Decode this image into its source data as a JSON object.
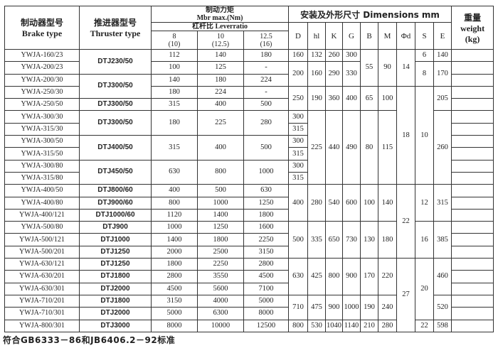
{
  "header": {
    "brake_cn": "制动器型号",
    "brake_en": "Brake type",
    "thruster_cn": "推进器型号",
    "thruster_en": "Thruster type",
    "torque_cn": "制动力矩",
    "torque_en": "Mbr max.(Nm)",
    "lever": "杠杆比 Leverratio",
    "lever_cols": [
      {
        "top": "8",
        "bottom": "(10)"
      },
      {
        "top": "10",
        "bottom": "(12.5)"
      },
      {
        "top": "12.5",
        "bottom": "(16)"
      }
    ],
    "dimensions": "安装及外形尺寸 Dimensions mm",
    "dim_cols": [
      "D",
      "hl",
      "K",
      "G",
      "B",
      "M",
      "Φd",
      "S",
      "E"
    ],
    "weight_cn": "重量",
    "weight_en": "weight",
    "weight_unit": "(kg)"
  },
  "brake_types": [
    "YWJA-160/23",
    "YWJA-200/23",
    "YWJA-200/30",
    "YWJA-250/30",
    "YWJA-250/50",
    "YWJA-300/30",
    "YWJA-315/30",
    "YWJA-300/50",
    "YWJA-315/50",
    "YWJA-300/80",
    "YWJA-315/80",
    "YWJA-400/50",
    "YWJA-400/80",
    "YWJA-400/121",
    "YWJA-500/80",
    "YWJA-500/121",
    "YWJA-500/201",
    "YWJA-630/121",
    "YWJA-630/201",
    "YWJA-630/301",
    "YWJA-710/201",
    "YWJA-710/301",
    "YWJA-800/301"
  ],
  "columns": {
    "thruster": [
      {
        "v": "DTJ230/50",
        "span": 2
      },
      {
        "v": "DTJ300/50",
        "span": 2
      },
      {
        "v": "DTJ300/50",
        "span": 1
      },
      {
        "v": "DTJ300/50",
        "span": 2
      },
      {
        "v": "DTJ400/50",
        "span": 2
      },
      {
        "v": "DTJ450/50",
        "span": 2
      },
      {
        "v": "DTJ800/60",
        "span": 1
      },
      {
        "v": "DTJ900/60",
        "span": 1
      },
      {
        "v": "DTJ1000/60",
        "span": 1
      },
      {
        "v": "DTJ900",
        "span": 1
      },
      {
        "v": "DTJ1000",
        "span": 1
      },
      {
        "v": "DTJ1250",
        "span": 1
      },
      {
        "v": "DTJ1250",
        "span": 1
      },
      {
        "v": "DTJ1800",
        "span": 1
      },
      {
        "v": "DTJ2000",
        "span": 1
      },
      {
        "v": "DTJ1800",
        "span": 1
      },
      {
        "v": "DTJ2000",
        "span": 1
      },
      {
        "v": "DTJ3000",
        "span": 1
      }
    ],
    "t8": [
      {
        "v": "112",
        "span": 1
      },
      {
        "v": "100",
        "span": 1
      },
      {
        "v": "140",
        "span": 1
      },
      {
        "v": "180",
        "span": 1
      },
      {
        "v": "315",
        "span": 1
      },
      {
        "v": "180",
        "span": 2
      },
      {
        "v": "315",
        "span": 2
      },
      {
        "v": "630",
        "span": 2
      },
      {
        "v": "400",
        "span": 1
      },
      {
        "v": "800",
        "span": 1
      },
      {
        "v": "1120",
        "span": 1
      },
      {
        "v": "1000",
        "span": 1
      },
      {
        "v": "1400",
        "span": 1
      },
      {
        "v": "2000",
        "span": 1
      },
      {
        "v": "1800",
        "span": 1
      },
      {
        "v": "2800",
        "span": 1
      },
      {
        "v": "4500",
        "span": 1
      },
      {
        "v": "3150",
        "span": 1
      },
      {
        "v": "5000",
        "span": 1
      },
      {
        "v": "8000",
        "span": 1
      }
    ],
    "t10": [
      {
        "v": "140",
        "span": 1
      },
      {
        "v": "125",
        "span": 1
      },
      {
        "v": "180",
        "span": 1
      },
      {
        "v": "224",
        "span": 1
      },
      {
        "v": "400",
        "span": 1
      },
      {
        "v": "225",
        "span": 2
      },
      {
        "v": "400",
        "span": 2
      },
      {
        "v": "800",
        "span": 2
      },
      {
        "v": "500",
        "span": 1
      },
      {
        "v": "1000",
        "span": 1
      },
      {
        "v": "1400",
        "span": 1
      },
      {
        "v": "1250",
        "span": 1
      },
      {
        "v": "1800",
        "span": 1
      },
      {
        "v": "2500",
        "span": 1
      },
      {
        "v": "2250",
        "span": 1
      },
      {
        "v": "3550",
        "span": 1
      },
      {
        "v": "5600",
        "span": 1
      },
      {
        "v": "4000",
        "span": 1
      },
      {
        "v": "6300",
        "span": 1
      },
      {
        "v": "10000",
        "span": 1
      }
    ],
    "t125": [
      {
        "v": "180",
        "span": 1
      },
      {
        "v": "-",
        "span": 1
      },
      {
        "v": "224",
        "span": 1
      },
      {
        "v": "-",
        "span": 1
      },
      {
        "v": "500",
        "span": 1
      },
      {
        "v": "280",
        "span": 2
      },
      {
        "v": "500",
        "span": 2
      },
      {
        "v": "1000",
        "span": 2
      },
      {
        "v": "630",
        "span": 1
      },
      {
        "v": "1250",
        "span": 1
      },
      {
        "v": "1800",
        "span": 1
      },
      {
        "v": "1600",
        "span": 1
      },
      {
        "v": "2250",
        "span": 1
      },
      {
        "v": "3150",
        "span": 1
      },
      {
        "v": "2800",
        "span": 1
      },
      {
        "v": "4500",
        "span": 1
      },
      {
        "v": "7100",
        "span": 1
      },
      {
        "v": "5000",
        "span": 1
      },
      {
        "v": "8000",
        "span": 1
      },
      {
        "v": "12500",
        "span": 1
      }
    ],
    "D": [
      {
        "v": "160",
        "span": 1
      },
      {
        "v": "200",
        "span": 2
      },
      {
        "v": "250",
        "span": 2
      },
      {
        "v": "300",
        "span": 1
      },
      {
        "v": "315",
        "span": 1
      },
      {
        "v": "300",
        "span": 1
      },
      {
        "v": "315",
        "span": 1
      },
      {
        "v": "300",
        "span": 1
      },
      {
        "v": "315",
        "span": 1
      },
      {
        "v": "400",
        "span": 3
      },
      {
        "v": "500",
        "span": 3
      },
      {
        "v": "630",
        "span": 3
      },
      {
        "v": "710",
        "span": 2
      },
      {
        "v": "800",
        "span": 1
      }
    ],
    "hl": [
      {
        "v": "132",
        "span": 1
      },
      {
        "v": "160",
        "span": 2
      },
      {
        "v": "190",
        "span": 2
      },
      {
        "v": "225",
        "span": 6
      },
      {
        "v": "280",
        "span": 3
      },
      {
        "v": "335",
        "span": 3
      },
      {
        "v": "425",
        "span": 3
      },
      {
        "v": "475",
        "span": 2
      },
      {
        "v": "530",
        "span": 1
      }
    ],
    "K": [
      {
        "v": "260",
        "span": 1
      },
      {
        "v": "290",
        "span": 2
      },
      {
        "v": "360",
        "span": 2
      },
      {
        "v": "440",
        "span": 6
      },
      {
        "v": "540",
        "span": 3
      },
      {
        "v": "650",
        "span": 3
      },
      {
        "v": "800",
        "span": 3
      },
      {
        "v": "900",
        "span": 2
      },
      {
        "v": "1040",
        "span": 1
      }
    ],
    "G": [
      {
        "v": "300",
        "span": 1
      },
      {
        "v": "330",
        "span": 2
      },
      {
        "v": "400",
        "span": 2
      },
      {
        "v": "490",
        "span": 6
      },
      {
        "v": "600",
        "span": 3
      },
      {
        "v": "730",
        "span": 3
      },
      {
        "v": "900",
        "span": 3
      },
      {
        "v": "1000",
        "span": 2
      },
      {
        "v": "1140",
        "span": 1
      }
    ],
    "B": [
      {
        "v": "55",
        "span": 3
      },
      {
        "v": "65",
        "span": 2
      },
      {
        "v": "80",
        "span": 6
      },
      {
        "v": "100",
        "span": 3
      },
      {
        "v": "130",
        "span": 3
      },
      {
        "v": "170",
        "span": 3
      },
      {
        "v": "190",
        "span": 2
      },
      {
        "v": "210",
        "span": 1
      }
    ],
    "M": [
      {
        "v": "90",
        "span": 3
      },
      {
        "v": "100",
        "span": 2
      },
      {
        "v": "115",
        "span": 6
      },
      {
        "v": "140",
        "span": 3
      },
      {
        "v": "180",
        "span": 3
      },
      {
        "v": "220",
        "span": 3
      },
      {
        "v": "240",
        "span": 2
      },
      {
        "v": "280",
        "span": 1
      }
    ],
    "d": [
      {
        "v": "14",
        "span": 3
      },
      {
        "v": "18",
        "span": 8
      },
      {
        "v": "22",
        "span": 6
      },
      {
        "v": "27",
        "span": 6
      }
    ],
    "S": [
      {
        "v": "6",
        "span": 1
      },
      {
        "v": "8",
        "span": 2
      },
      {
        "v": "10",
        "span": 8
      },
      {
        "v": "12",
        "span": 3
      },
      {
        "v": "16",
        "span": 3
      },
      {
        "v": "20",
        "span": 5
      },
      {
        "v": "22",
        "span": 1
      }
    ],
    "E": [
      {
        "v": "140",
        "span": 1
      },
      {
        "v": "170",
        "span": 2
      },
      {
        "v": "205",
        "span": 2
      },
      {
        "v": "260",
        "span": 6
      },
      {
        "v": "315",
        "span": 3
      },
      {
        "v": "385",
        "span": 3
      },
      {
        "v": "460",
        "span": 3
      },
      {
        "v": "520",
        "span": 2
      },
      {
        "v": "598",
        "span": 1
      }
    ]
  },
  "footnote": "符合GB6333－86和JB6406.2－92标准"
}
